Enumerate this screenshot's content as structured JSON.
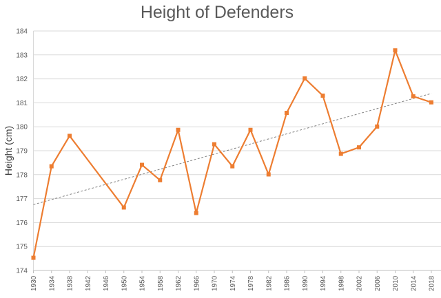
{
  "chart_data": {
    "type": "line",
    "title": "Height of Defenders",
    "xlabel": "",
    "ylabel": "Height (cm)",
    "ylim": [
      174,
      184
    ],
    "yticks": [
      "174",
      "175",
      "176",
      "177",
      "178",
      "179",
      "180",
      "181",
      "182",
      "183",
      "184"
    ],
    "xticks": [
      "1930",
      "1934",
      "1938",
      "1942",
      "1946",
      "1950",
      "1954",
      "1958",
      "1962",
      "1966",
      "1970",
      "1974",
      "1978",
      "1982",
      "1986",
      "1990",
      "1994",
      "1998",
      "2002",
      "2006",
      "2010",
      "2014",
      "2018"
    ],
    "grid": true,
    "series": [
      {
        "color": "#ED7D31",
        "marker": "square",
        "points": [
          {
            "x": 1930,
            "y": 174.53
          },
          {
            "x": 1934,
            "y": 178.35
          },
          {
            "x": 1938,
            "y": 179.62
          },
          {
            "x": 1950,
            "y": 176.63
          },
          {
            "x": 1954,
            "y": 178.41
          },
          {
            "x": 1958,
            "y": 177.77
          },
          {
            "x": 1962,
            "y": 179.87
          },
          {
            "x": 1966,
            "y": 176.4
          },
          {
            "x": 1970,
            "y": 179.27
          },
          {
            "x": 1974,
            "y": 178.35
          },
          {
            "x": 1978,
            "y": 179.87
          },
          {
            "x": 1982,
            "y": 178.01
          },
          {
            "x": 1986,
            "y": 180.58
          },
          {
            "x": 1990,
            "y": 182.02
          },
          {
            "x": 1994,
            "y": 181.3
          },
          {
            "x": 1998,
            "y": 178.87
          },
          {
            "x": 2002,
            "y": 179.14
          },
          {
            "x": 2006,
            "y": 180.01
          },
          {
            "x": 2010,
            "y": 183.19
          },
          {
            "x": 2014,
            "y": 181.27
          },
          {
            "x": 2018,
            "y": 181.02
          }
        ]
      }
    ],
    "trendline": {
      "type": "linear",
      "color": "#808080",
      "style": "dashed",
      "from": {
        "x": 1930,
        "y": 176.75
      },
      "to": {
        "x": 2018,
        "y": 181.39
      }
    }
  }
}
